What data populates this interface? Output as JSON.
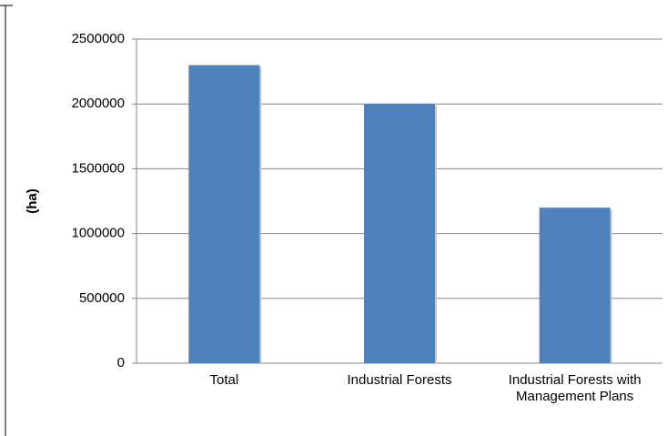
{
  "chart_data": {
    "type": "bar",
    "y_label": "(ha)",
    "categories": [
      "Total",
      "Industrial Forests",
      "Industrial Forests with Management Plans"
    ],
    "values": [
      2300000,
      2000000,
      1200000
    ],
    "color": "#4f81bd",
    "ylim": [
      0,
      2500000
    ],
    "yticks": [
      0,
      500000,
      1000000,
      1500000,
      2000000,
      2500000
    ],
    "grid": true
  }
}
